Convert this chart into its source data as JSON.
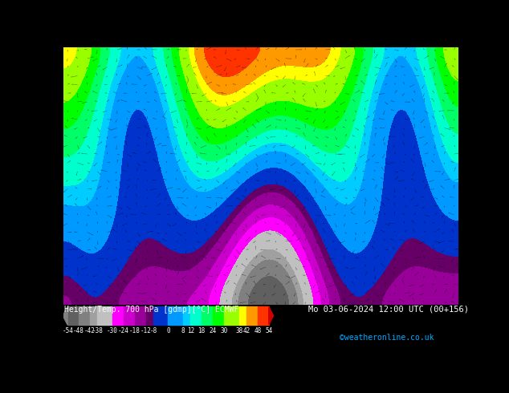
{
  "title_left": "Height/Temp. 700 hPa [gdmp][°C] ECMWF",
  "title_right": "Mo 03-06-2024 12:00 UTC (00+156)",
  "credit": "©weatheronline.co.uk",
  "colorbar_values": [
    -54,
    -48,
    -42,
    -38,
    -30,
    -24,
    -18,
    -12,
    -8,
    0,
    8,
    12,
    18,
    24,
    30,
    38,
    42,
    48,
    54
  ],
  "colorbar_tick_labels": [
    "-54",
    "-48",
    "-42",
    "-38",
    "-30",
    "-24",
    "-18",
    "-12",
    "-8",
    "0",
    "8",
    "12",
    "18",
    "24",
    "30",
    "38",
    "42",
    "48",
    "54"
  ],
  "colorbar_colors": [
    "#606060",
    "#808080",
    "#a0a0a0",
    "#c0c0c0",
    "#ff00ff",
    "#cc00cc",
    "#990099",
    "#660066",
    "#0000ff",
    "#0066ff",
    "#00ccff",
    "#00ffcc",
    "#00ff00",
    "#66ff00",
    "#ccff00",
    "#ffff00",
    "#ffcc00",
    "#ff6600",
    "#ff0000",
    "#cc0000"
  ],
  "bg_color": "#000000",
  "map_colors": {
    "green_dark": "#006600",
    "green_bright": "#00cc00",
    "yellow": "#ffff00",
    "black": "#000000",
    "dark_band": "#1a1a1a"
  },
  "figsize": [
    6.34,
    4.9
  ],
  "dpi": 100
}
